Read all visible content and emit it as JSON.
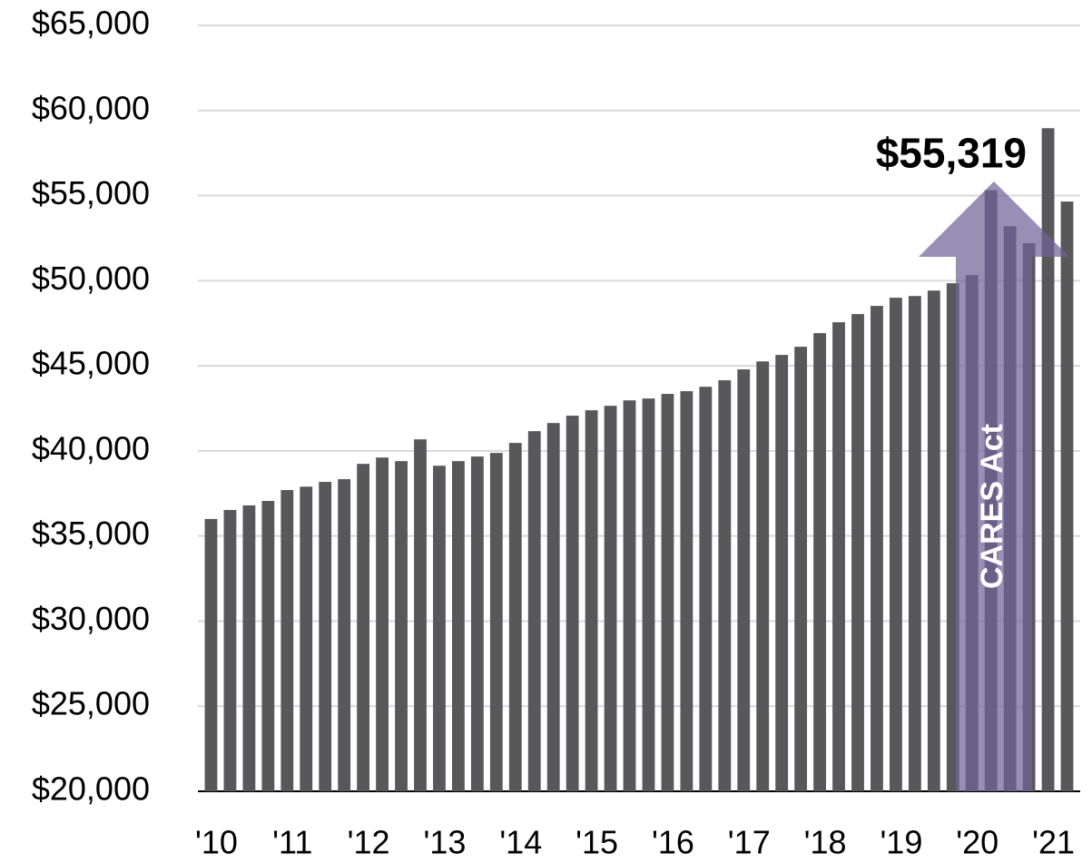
{
  "chart_data": {
    "type": "bar",
    "categories": [
      "'10",
      null,
      null,
      null,
      "'11",
      null,
      null,
      null,
      "'12",
      null,
      null,
      null,
      "'13",
      null,
      null,
      null,
      "'14",
      null,
      null,
      null,
      "'15",
      null,
      null,
      null,
      "'16",
      null,
      null,
      null,
      "'17",
      null,
      null,
      null,
      "'18",
      null,
      null,
      null,
      "'19",
      null,
      null,
      null,
      "'20",
      null,
      null,
      null,
      "'21",
      null
    ],
    "values": [
      36000,
      36530,
      36800,
      37060,
      37700,
      37900,
      38180,
      38340,
      39240,
      39610,
      39400,
      40680,
      39130,
      39400,
      39670,
      39880,
      40470,
      41160,
      41640,
      42070,
      42390,
      42650,
      42970,
      43080,
      43350,
      43510,
      43770,
      44150,
      44790,
      45260,
      45640,
      46120,
      46920,
      47560,
      48040,
      48520,
      49000,
      49100,
      49420,
      49850,
      50330,
      55319,
      53200,
      52200,
      58960,
      54650
    ],
    "value_labels": [
      null,
      null,
      null,
      null,
      null,
      null,
      null,
      null,
      null,
      null,
      null,
      null,
      null,
      null,
      null,
      null,
      null,
      null,
      null,
      null,
      null,
      null,
      null,
      null,
      null,
      null,
      null,
      null,
      null,
      null,
      null,
      null,
      null,
      null,
      null,
      null,
      null,
      null,
      null,
      null,
      null,
      "$55,319",
      null,
      null,
      null,
      null
    ],
    "color": "#58585a",
    "annotations": [
      "CARES Act"
    ],
    "ylim": [
      20000,
      65000
    ],
    "yticks": [
      {
        "value": 20000,
        "label": "$20,000"
      },
      {
        "value": 25000,
        "label": "$25,000"
      },
      {
        "value": 30000,
        "label": "$30,000"
      },
      {
        "value": 35000,
        "label": "$35,000"
      },
      {
        "value": 40000,
        "label": "$40,000"
      },
      {
        "value": 45000,
        "label": "$45,000"
      },
      {
        "value": 50000,
        "label": "$50,000"
      },
      {
        "value": 55000,
        "label": "$55,000"
      },
      {
        "value": 60000,
        "label": "$60,000"
      },
      {
        "value": 65000,
        "label": "$65,000"
      }
    ],
    "grid": true
  }
}
